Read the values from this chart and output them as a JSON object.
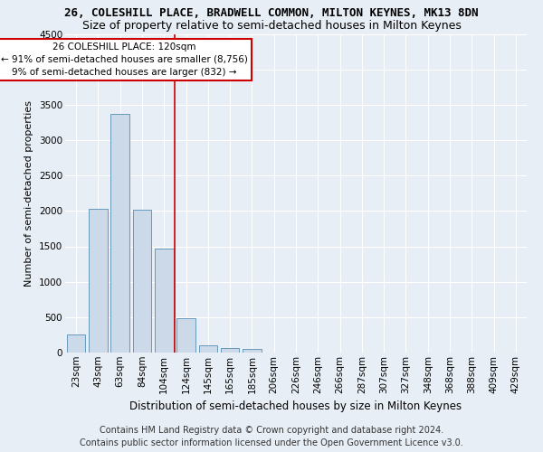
{
  "title_line1": "26, COLESHILL PLACE, BRADWELL COMMON, MILTON KEYNES, MK13 8DN",
  "title_line2": "Size of property relative to semi-detached houses in Milton Keynes",
  "xlabel": "Distribution of semi-detached houses by size in Milton Keynes",
  "ylabel": "Number of semi-detached properties",
  "footer_line1": "Contains HM Land Registry data © Crown copyright and database right 2024.",
  "footer_line2": "Contains public sector information licensed under the Open Government Licence v3.0.",
  "bar_labels": [
    "23sqm",
    "43sqm",
    "63sqm",
    "84sqm",
    "104sqm",
    "124sqm",
    "145sqm",
    "165sqm",
    "185sqm",
    "206sqm",
    "226sqm",
    "246sqm",
    "266sqm",
    "287sqm",
    "307sqm",
    "327sqm",
    "348sqm",
    "368sqm",
    "388sqm",
    "409sqm",
    "429sqm"
  ],
  "bar_values": [
    250,
    2030,
    3370,
    2020,
    1470,
    480,
    100,
    60,
    50,
    0,
    0,
    0,
    0,
    0,
    0,
    0,
    0,
    0,
    0,
    0,
    0
  ],
  "bar_color": "#ccd9e8",
  "bar_edge_color": "#6699bb",
  "ylim": [
    0,
    4500
  ],
  "yticks": [
    0,
    500,
    1000,
    1500,
    2000,
    2500,
    3000,
    3500,
    4000,
    4500
  ],
  "annotation_title": "26 COLESHILL PLACE: 120sqm",
  "annotation_line2": "← 91% of semi-detached houses are smaller (8,756)",
  "annotation_line3": "9% of semi-detached houses are larger (832) →",
  "annotation_box_color": "#ffffff",
  "annotation_box_edge_color": "#cc0000",
  "vline_color": "#cc0000",
  "background_color": "#e8eef5",
  "grid_color": "#ffffff",
  "title1_fontsize": 9,
  "title2_fontsize": 9,
  "xlabel_fontsize": 8.5,
  "ylabel_fontsize": 8,
  "footer_fontsize": 7,
  "tick_fontsize": 7.5,
  "annotation_fontsize": 7.5
}
